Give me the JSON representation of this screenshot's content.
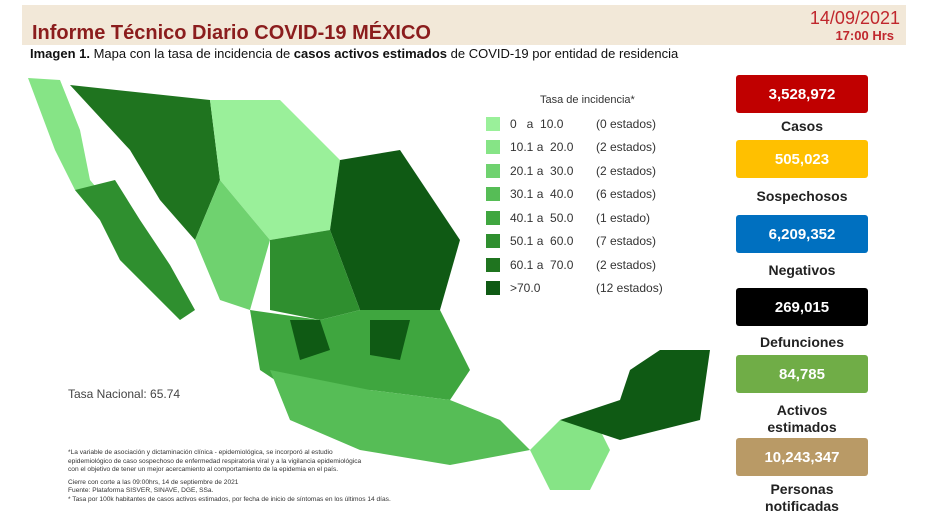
{
  "header": {
    "title": "Informe Técnico Diario COVID-19 MÉXICO",
    "date": "14/09/2021",
    "time": "17:00 Hrs"
  },
  "subtitle": {
    "label": "Imagen 1.",
    "text1": "Mapa con la tasa de incidencia de",
    "bold": "casos activos estimados",
    "text2": "de COVID-19 por entidad de residencia"
  },
  "legend": {
    "title": "Tasa de incidencia*",
    "rows": [
      {
        "range": "0   a  10.0",
        "count": "(0 estados)",
        "color": "#9af09a"
      },
      {
        "range": "10.1 a  20.0",
        "count": "(2 estados)",
        "color": "#86e486"
      },
      {
        "range": "20.1 a  30.0",
        "count": "(2 estados)",
        "color": "#6fd26f"
      },
      {
        "range": "30.1 a  40.0",
        "count": "(6 estados)",
        "color": "#56bd56"
      },
      {
        "range": "40.1 a  50.0",
        "count": "(1 estado)",
        "color": "#3fa63f"
      },
      {
        "range": "50.1 a  60.0",
        "count": "(7 estados)",
        "color": "#2f8f2f"
      },
      {
        "range": "60.1 a  70.0",
        "count": "(2 estados)",
        "color": "#1f741f"
      },
      {
        "range": ">70.0",
        "count": "(12 estados)",
        "color": "#0f5a14"
      }
    ]
  },
  "national_rate": "Tasa Nacional: 65.74",
  "notes": [
    "*La variable de asociación y dictaminación clínica - epidemiológica, se incorporó al estudio",
    "epidemiológico de caso sospechoso de enfermedad respiratoria viral y a la vigilancia epidemiológica",
    "con el objetivo de tener un mejor acercamiento al comportamiento de la epidemia en el país.",
    "Cierre con corte a las 09:00hrs, 14 de septiembre de 2021",
    "Fuente: Plataforma SISVER, SINAVE, DGE, SSa.",
    "* Tasa por 100k habitantes de casos activos estimados, por fecha de inicio de síntomas en los últimos 14 días."
  ],
  "stats": [
    {
      "value": "3,528,972",
      "label": "Casos",
      "color": "#c00000",
      "text_color": "#ffffff"
    },
    {
      "value": "505,023",
      "label": "Sospechosos",
      "color": "#ffc000",
      "text_color": "#ffffff"
    },
    {
      "value": "6,209,352",
      "label": "Negativos",
      "color": "#0070c0",
      "text_color": "#ffffff"
    },
    {
      "value": "269,015",
      "label": "Defunciones",
      "color": "#000000",
      "text_color": "#ffffff"
    },
    {
      "value": "84,785",
      "label": "Activos estimados",
      "color": "#70ad47",
      "text_color": "#ffffff"
    },
    {
      "value": "10,243,347",
      "label": "Personas notificadas",
      "color": "#b99a66",
      "text_color": "#ffffff"
    }
  ]
}
